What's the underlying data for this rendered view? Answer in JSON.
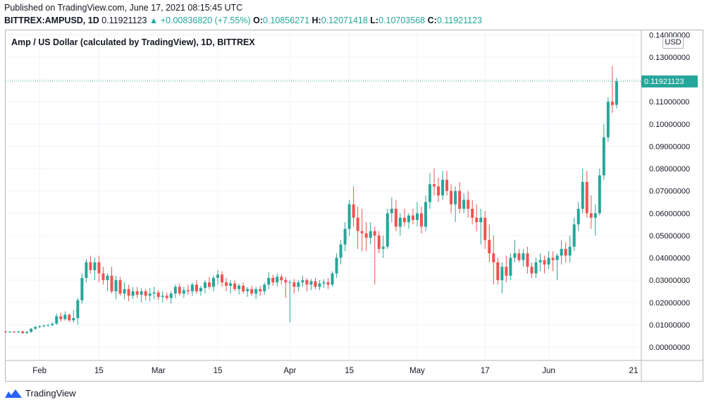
{
  "header": {
    "published": "Published on TradingView.com, June 17, 2021 08:15:45 UTC",
    "symbol": "BITTREX:AMPUSD, 1D",
    "last": "0.11921123",
    "change": "▲ +0.00836820 (+7.55%)",
    "o_label": "O:",
    "o_value": "0.10856271",
    "h_label": "H:",
    "h_value": "0.12071418",
    "l_label": "L:",
    "l_value": "0.10703568",
    "c_label": "C:",
    "c_value": "0.11921123"
  },
  "chart_title": "Amp / US Dollar (calculated by TradingView), 1D, BITTREX",
  "currency": "USD",
  "footer": {
    "brand": "TradingView"
  },
  "colors": {
    "up": "#26a69a",
    "down": "#ef5350",
    "grid": "#f0f3fa",
    "axis_text": "#131722"
  },
  "chart_data": {
    "type": "candlestick",
    "title": "Amp / US Dollar (calculated by TradingView), 1D, BITTREX",
    "ylim": [
      -0.006,
      0.142
    ],
    "y_ticks": [
      0,
      0.01,
      0.02,
      0.03,
      0.04,
      0.05,
      0.06,
      0.07,
      0.08,
      0.09,
      0.1,
      0.11,
      0.12,
      0.13,
      0.14
    ],
    "y_tick_labels": [
      "0.00000000",
      "0.01000000",
      "0.02000000",
      "0.03000000",
      "0.04000000",
      "0.05000000",
      "0.06000000",
      "0.07000000",
      "0.08000000",
      "0.09000000",
      "0.10000000",
      "0.11000000",
      "0.12000000",
      "0.13000000",
      "0.14000000"
    ],
    "x_ticks": [
      {
        "label": "Feb",
        "day": 8
      },
      {
        "label": "15",
        "day": 22
      },
      {
        "label": "Mar",
        "day": 36
      },
      {
        "label": "15",
        "day": 50
      },
      {
        "label": "Apr",
        "day": 67
      },
      {
        "label": "15",
        "day": 81
      },
      {
        "label": "May",
        "day": 97
      },
      {
        "label": "17",
        "day": 113
      },
      {
        "label": "Jun",
        "day": 128
      },
      {
        "label": "21",
        "day": 148
      }
    ],
    "last_price": 0.11921123,
    "last_price_label": "0.11921123",
    "ohlc": [
      [
        0.007,
        0.0073,
        0.0065,
        0.0068
      ],
      [
        0.0068,
        0.0072,
        0.0064,
        0.0069
      ],
      [
        0.0069,
        0.0071,
        0.0063,
        0.0067
      ],
      [
        0.0067,
        0.0072,
        0.0062,
        0.007
      ],
      [
        0.007,
        0.0074,
        0.0058,
        0.0063
      ],
      [
        0.0063,
        0.0071,
        0.0058,
        0.0068
      ],
      [
        0.0068,
        0.0086,
        0.0065,
        0.0082
      ],
      [
        0.0082,
        0.0095,
        0.0078,
        0.009
      ],
      [
        0.009,
        0.0098,
        0.0085,
        0.0094
      ],
      [
        0.0094,
        0.01,
        0.0088,
        0.0097
      ],
      [
        0.0097,
        0.0102,
        0.0092,
        0.0099
      ],
      [
        0.0099,
        0.011,
        0.0095,
        0.0105
      ],
      [
        0.0105,
        0.015,
        0.01,
        0.0138
      ],
      [
        0.0138,
        0.0155,
        0.0115,
        0.0125
      ],
      [
        0.0125,
        0.016,
        0.0118,
        0.0145
      ],
      [
        0.0145,
        0.015,
        0.0112,
        0.012
      ],
      [
        0.012,
        0.0165,
        0.011,
        0.013
      ],
      [
        0.013,
        0.022,
        0.01,
        0.021
      ],
      [
        0.021,
        0.033,
        0.0195,
        0.031
      ],
      [
        0.031,
        0.0395,
        0.029,
        0.038
      ],
      [
        0.038,
        0.041,
        0.033,
        0.0345
      ],
      [
        0.0345,
        0.04,
        0.03,
        0.038
      ],
      [
        0.038,
        0.041,
        0.029,
        0.033
      ],
      [
        0.033,
        0.036,
        0.028,
        0.03
      ],
      [
        0.03,
        0.033,
        0.025,
        0.032
      ],
      [
        0.032,
        0.036,
        0.024,
        0.025
      ],
      [
        0.025,
        0.032,
        0.0215,
        0.03
      ],
      [
        0.03,
        0.0315,
        0.023,
        0.024
      ],
      [
        0.024,
        0.029,
        0.0215,
        0.026
      ],
      [
        0.026,
        0.028,
        0.0205,
        0.023
      ],
      [
        0.023,
        0.027,
        0.0215,
        0.025
      ],
      [
        0.025,
        0.027,
        0.022,
        0.0235
      ],
      [
        0.0235,
        0.0265,
        0.02,
        0.025
      ],
      [
        0.025,
        0.026,
        0.021,
        0.023
      ],
      [
        0.023,
        0.0265,
        0.0205,
        0.024
      ],
      [
        0.024,
        0.027,
        0.0215,
        0.0245
      ],
      [
        0.0245,
        0.0255,
        0.021,
        0.0225
      ],
      [
        0.0225,
        0.025,
        0.02,
        0.023
      ],
      [
        0.023,
        0.0245,
        0.021,
        0.022
      ],
      [
        0.022,
        0.025,
        0.0195,
        0.024
      ],
      [
        0.024,
        0.028,
        0.022,
        0.027
      ],
      [
        0.027,
        0.0285,
        0.023,
        0.024
      ],
      [
        0.024,
        0.027,
        0.022,
        0.0255
      ],
      [
        0.0255,
        0.028,
        0.0235,
        0.025
      ],
      [
        0.025,
        0.029,
        0.023,
        0.028
      ],
      [
        0.028,
        0.03,
        0.024,
        0.025
      ],
      [
        0.025,
        0.0275,
        0.023,
        0.0265
      ],
      [
        0.0265,
        0.03,
        0.024,
        0.029
      ],
      [
        0.029,
        0.0315,
        0.026,
        0.027
      ],
      [
        0.027,
        0.032,
        0.025,
        0.031
      ],
      [
        0.031,
        0.0345,
        0.028,
        0.0325
      ],
      [
        0.0325,
        0.034,
        0.027,
        0.029
      ],
      [
        0.029,
        0.031,
        0.025,
        0.0275
      ],
      [
        0.0275,
        0.03,
        0.024,
        0.0285
      ],
      [
        0.0285,
        0.03,
        0.025,
        0.026
      ],
      [
        0.026,
        0.0285,
        0.0235,
        0.0275
      ],
      [
        0.0275,
        0.029,
        0.024,
        0.025
      ],
      [
        0.025,
        0.027,
        0.0225,
        0.026
      ],
      [
        0.026,
        0.0275,
        0.023,
        0.024
      ],
      [
        0.024,
        0.027,
        0.0215,
        0.026
      ],
      [
        0.026,
        0.0275,
        0.023,
        0.025
      ],
      [
        0.025,
        0.029,
        0.0235,
        0.028
      ],
      [
        0.028,
        0.0335,
        0.026,
        0.031
      ],
      [
        0.031,
        0.0325,
        0.0275,
        0.029
      ],
      [
        0.029,
        0.033,
        0.027,
        0.0315
      ],
      [
        0.0315,
        0.0325,
        0.028,
        0.03
      ],
      [
        0.03,
        0.0315,
        0.022,
        0.029
      ],
      [
        0.029,
        0.03,
        0.011,
        0.029
      ],
      [
        0.029,
        0.0305,
        0.024,
        0.027
      ],
      [
        0.027,
        0.03,
        0.025,
        0.029
      ],
      [
        0.029,
        0.032,
        0.027,
        0.03
      ],
      [
        0.03,
        0.031,
        0.025,
        0.028
      ],
      [
        0.028,
        0.0305,
        0.0255,
        0.0295
      ],
      [
        0.0295,
        0.031,
        0.026,
        0.027
      ],
      [
        0.027,
        0.03,
        0.0255,
        0.0285
      ],
      [
        0.0285,
        0.0305,
        0.0265,
        0.029
      ],
      [
        0.029,
        0.031,
        0.026,
        0.028
      ],
      [
        0.028,
        0.034,
        0.027,
        0.033
      ],
      [
        0.033,
        0.042,
        0.031,
        0.04
      ],
      [
        0.04,
        0.048,
        0.037,
        0.046
      ],
      [
        0.046,
        0.056,
        0.043,
        0.053
      ],
      [
        0.053,
        0.066,
        0.05,
        0.064
      ],
      [
        0.064,
        0.072,
        0.054,
        0.058
      ],
      [
        0.058,
        0.063,
        0.044,
        0.052
      ],
      [
        0.052,
        0.062,
        0.043,
        0.051
      ],
      [
        0.051,
        0.056,
        0.043,
        0.049
      ],
      [
        0.049,
        0.056,
        0.046,
        0.052
      ],
      [
        0.052,
        0.054,
        0.028,
        0.05
      ],
      [
        0.05,
        0.052,
        0.042,
        0.044
      ],
      [
        0.044,
        0.05,
        0.04,
        0.045
      ],
      [
        0.045,
        0.062,
        0.044,
        0.06
      ],
      [
        0.06,
        0.067,
        0.056,
        0.062
      ],
      [
        0.062,
        0.066,
        0.052,
        0.054
      ],
      [
        0.054,
        0.06,
        0.05,
        0.058
      ],
      [
        0.058,
        0.062,
        0.054,
        0.056
      ],
      [
        0.056,
        0.06,
        0.053,
        0.059
      ],
      [
        0.059,
        0.062,
        0.055,
        0.057
      ],
      [
        0.057,
        0.065,
        0.054,
        0.06
      ],
      [
        0.06,
        0.063,
        0.051,
        0.054
      ],
      [
        0.054,
        0.068,
        0.052,
        0.065
      ],
      [
        0.065,
        0.078,
        0.062,
        0.073
      ],
      [
        0.073,
        0.08,
        0.068,
        0.072
      ],
      [
        0.072,
        0.076,
        0.065,
        0.068
      ],
      [
        0.068,
        0.079,
        0.066,
        0.075
      ],
      [
        0.075,
        0.079,
        0.068,
        0.07
      ],
      [
        0.07,
        0.073,
        0.06,
        0.064
      ],
      [
        0.064,
        0.072,
        0.056,
        0.07
      ],
      [
        0.07,
        0.074,
        0.06,
        0.062
      ],
      [
        0.062,
        0.069,
        0.06,
        0.066
      ],
      [
        0.066,
        0.07,
        0.058,
        0.062
      ],
      [
        0.062,
        0.066,
        0.055,
        0.058
      ],
      [
        0.058,
        0.064,
        0.052,
        0.056
      ],
      [
        0.056,
        0.062,
        0.046,
        0.058
      ],
      [
        0.058,
        0.061,
        0.044,
        0.048
      ],
      [
        0.048,
        0.055,
        0.038,
        0.042
      ],
      [
        0.042,
        0.05,
        0.028,
        0.038
      ],
      [
        0.038,
        0.04,
        0.028,
        0.03
      ],
      [
        0.03,
        0.038,
        0.024,
        0.036
      ],
      [
        0.036,
        0.041,
        0.029,
        0.032
      ],
      [
        0.032,
        0.042,
        0.03,
        0.04
      ],
      [
        0.04,
        0.048,
        0.038,
        0.042
      ],
      [
        0.042,
        0.044,
        0.038,
        0.039
      ],
      [
        0.039,
        0.044,
        0.036,
        0.042
      ],
      [
        0.042,
        0.045,
        0.033,
        0.036
      ],
      [
        0.036,
        0.038,
        0.031,
        0.033
      ],
      [
        0.033,
        0.04,
        0.031,
        0.038
      ],
      [
        0.038,
        0.042,
        0.034,
        0.039
      ],
      [
        0.039,
        0.041,
        0.033,
        0.037
      ],
      [
        0.037,
        0.043,
        0.035,
        0.04
      ],
      [
        0.04,
        0.043,
        0.034,
        0.039
      ],
      [
        0.039,
        0.042,
        0.03,
        0.041
      ],
      [
        0.041,
        0.048,
        0.037,
        0.044
      ],
      [
        0.044,
        0.047,
        0.038,
        0.041
      ],
      [
        0.041,
        0.05,
        0.038,
        0.045
      ],
      [
        0.045,
        0.058,
        0.043,
        0.055
      ],
      [
        0.055,
        0.065,
        0.052,
        0.062
      ],
      [
        0.062,
        0.08,
        0.06,
        0.074
      ],
      [
        0.074,
        0.079,
        0.058,
        0.06
      ],
      [
        0.06,
        0.068,
        0.053,
        0.058
      ],
      [
        0.058,
        0.064,
        0.05,
        0.06
      ],
      [
        0.06,
        0.08,
        0.059,
        0.077
      ],
      [
        0.077,
        0.1,
        0.075,
        0.094
      ],
      [
        0.094,
        0.112,
        0.092,
        0.11
      ],
      [
        0.11,
        0.126,
        0.105,
        0.1085
      ],
      [
        0.1086,
        0.1207,
        0.107,
        0.1192
      ]
    ]
  }
}
